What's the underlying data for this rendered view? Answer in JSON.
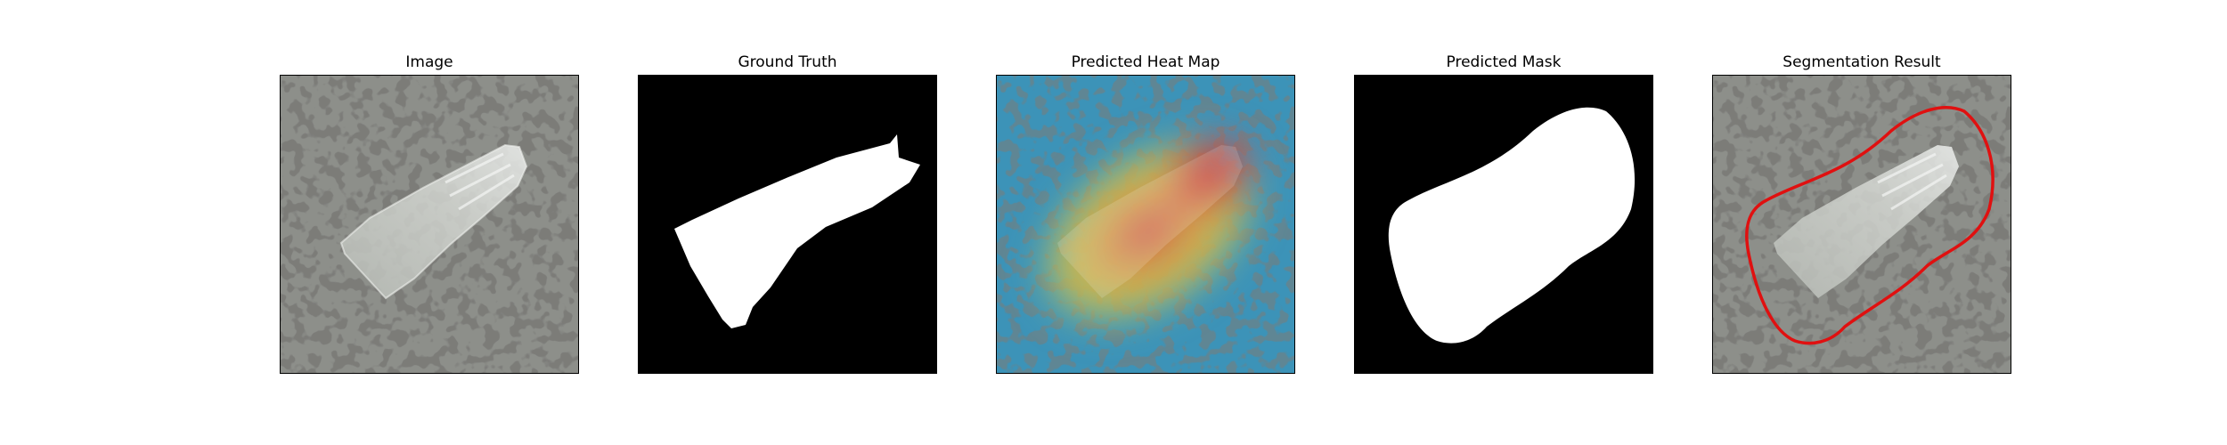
{
  "figure": {
    "panels": [
      {
        "title": "Image"
      },
      {
        "title": "Ground Truth"
      },
      {
        "title": "Predicted Heat Map"
      },
      {
        "title": "Predicted Mask"
      },
      {
        "title": "Segmentation Result"
      }
    ],
    "colors": {
      "background": "#ffffff",
      "texture_base": "#8d8f8a",
      "texture_spots": "#33332f",
      "mask_foreground": "#ffffff",
      "mask_background": "#000000",
      "heat_low": "#3c93b8",
      "heat_mid": "#d6b143",
      "heat_high": "#d64545",
      "contour": "#e01010"
    }
  }
}
